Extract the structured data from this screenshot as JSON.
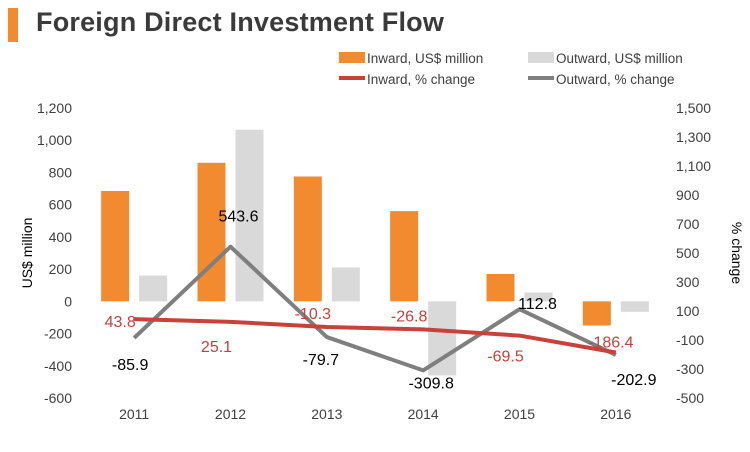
{
  "page": {
    "title": "Foreign Direct Investment Flow"
  },
  "colors": {
    "accent": "#f28a30",
    "inward_bar": "#f28a30",
    "outward_bar": "#d9d9d9",
    "inward_line": "#c8413b",
    "outward_line": "#7f7f7f",
    "inward_label": "#c8413b",
    "outward_label": "#000000",
    "axis_text": "#404040"
  },
  "chart_data": {
    "type": "bar",
    "title": "Foreign Direct Investment Flow",
    "categories": [
      "2011",
      "2012",
      "2013",
      "2014",
      "2015",
      "2016"
    ],
    "ylabel": "US$ million",
    "y2label": "% change",
    "ylim": [
      -600,
      1200
    ],
    "yticks": [
      "1,200",
      "1,000",
      "800",
      "600",
      "400",
      "200",
      "0",
      "-200",
      "-400",
      "-600"
    ],
    "y2lim": [
      -500,
      1500
    ],
    "y2ticks": [
      "1,500",
      "1,300",
      "1,100",
      "900",
      "700",
      "500",
      "300",
      "100",
      "-100",
      "-300",
      "-500"
    ],
    "legend_position": "top-right",
    "series": [
      {
        "name": "Inward, US$ million",
        "kind": "bar",
        "axis": "left",
        "values": [
          685,
          860,
          775,
          560,
          170,
          -150
        ]
      },
      {
        "name": "Outward, US$ million",
        "kind": "bar",
        "axis": "left",
        "values": [
          160,
          1065,
          210,
          -460,
          55,
          -65
        ]
      },
      {
        "name": "Inward, % change",
        "kind": "line",
        "axis": "right",
        "values": [
          43.8,
          25.1,
          -10.3,
          -26.8,
          -69.5,
          -186.4
        ],
        "labels": [
          "43.8",
          "25.1",
          "-10.3",
          "-26.8",
          "-69.5",
          "-186.4"
        ]
      },
      {
        "name": "Outward, % change",
        "kind": "line",
        "axis": "right",
        "values": [
          -85.9,
          543.6,
          -79.7,
          -309.8,
          112.8,
          -202.9
        ],
        "labels": [
          "-85.9",
          "543.6",
          "-79.7",
          "-309.8",
          "112.8",
          "-202.9"
        ]
      }
    ]
  }
}
